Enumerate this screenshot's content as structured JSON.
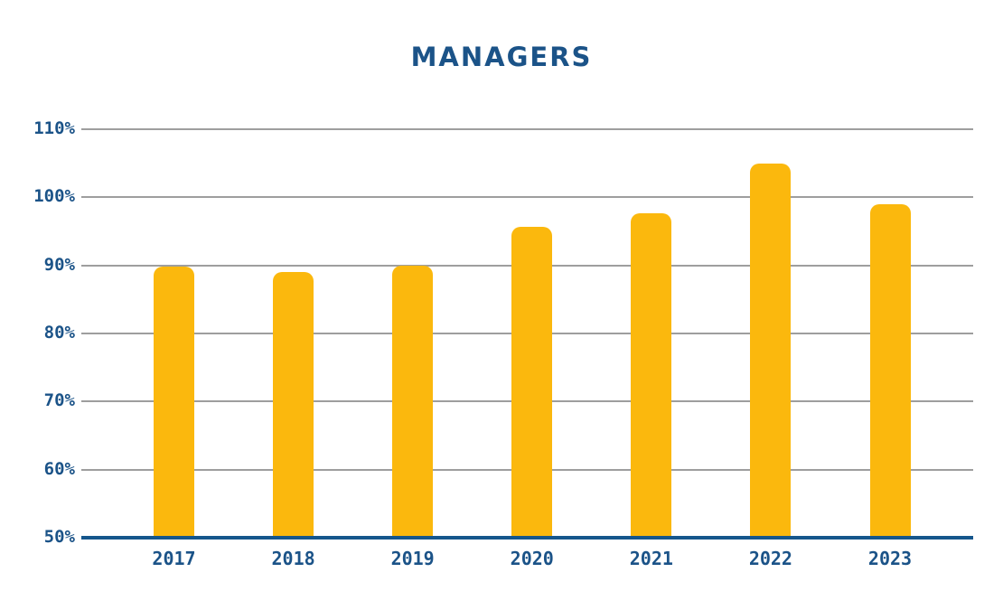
{
  "page": {
    "background": "#FFFFFF"
  },
  "chart_data": {
    "type": "bar",
    "title": "MANAGERS",
    "categories": [
      "2017",
      "2018",
      "2019",
      "2020",
      "2021",
      "2022",
      "2023"
    ],
    "values": [
      89.8,
      89.0,
      89.9,
      95.6,
      97.6,
      105.0,
      99.0
    ],
    "unit": "%",
    "xlabel": "",
    "ylabel": "",
    "ylim": [
      50,
      110
    ],
    "ytick_step": 10,
    "ytick_labels": [
      "110%",
      "100%",
      "90%",
      "80%",
      "70%",
      "60%",
      "50%"
    ],
    "grid": "horizontal-gray-lines",
    "legend": "none",
    "colors": {
      "bar_fill": "#FBB80D",
      "title_text": "#1B5388",
      "tick_text": "#1B5388",
      "gridline": "#9E9E9E",
      "baseline_axis": "#15568C"
    }
  }
}
